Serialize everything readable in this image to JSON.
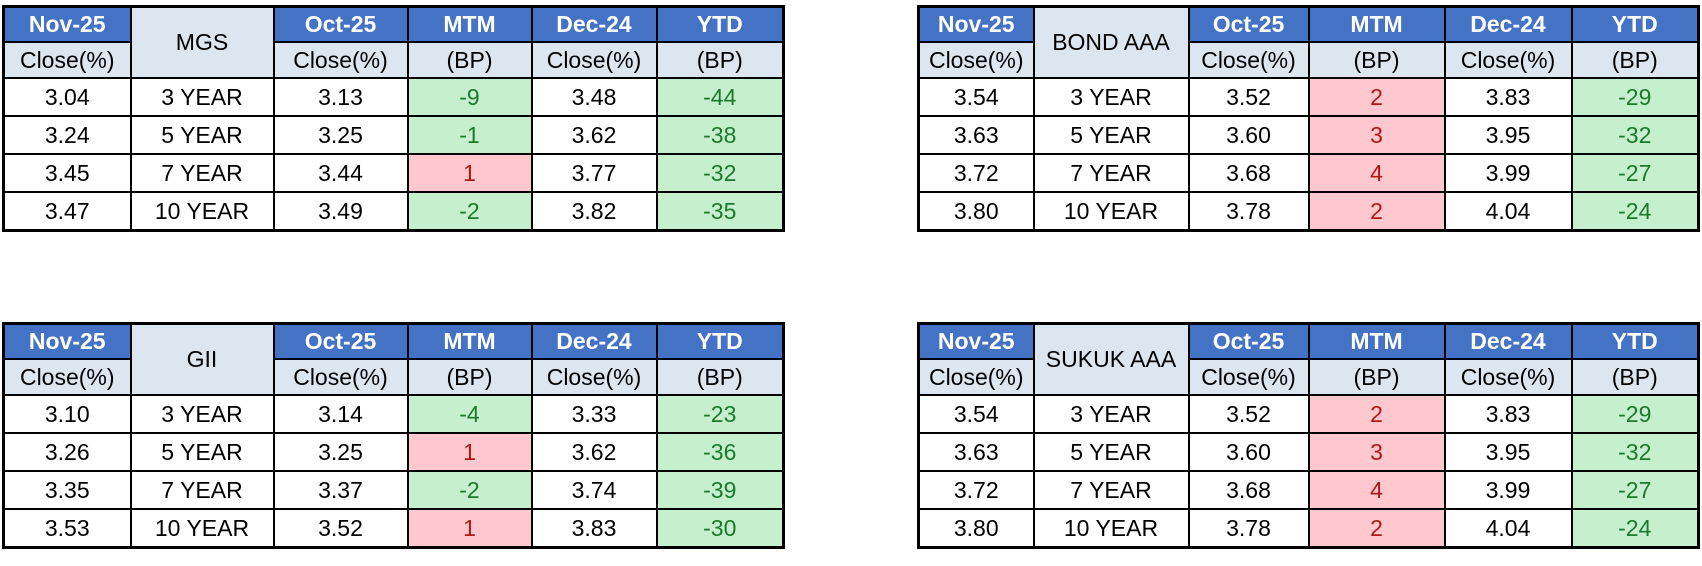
{
  "colors": {
    "header_blue": "#4472C4",
    "header_light_blue": "#DCE6F1",
    "up_bg": "#FFC7CE",
    "up_text": "#B01818",
    "down_bg": "#C6EFCE",
    "down_text": "#1B7A2B",
    "grid": "#000000",
    "page_bg": "#FFFFFF"
  },
  "tables": [
    {
      "name": "MGS",
      "position": "top-left",
      "headers": [
        {
          "label": "Nov-25",
          "sub": "Close(%)"
        },
        {
          "label": "Oct-25",
          "sub": "Close(%)"
        },
        {
          "label": "MTM",
          "sub": "(BP)"
        },
        {
          "label": "Dec-24",
          "sub": "Close(%)"
        },
        {
          "label": "YTD",
          "sub": "(BP)"
        }
      ],
      "rows": [
        {
          "nov_close": "3.04",
          "tenor": "3 YEAR",
          "oct_close": "3.13",
          "mtm": "-9",
          "dec_close": "3.48",
          "ytd": "-44"
        },
        {
          "nov_close": "3.24",
          "tenor": "5 YEAR",
          "oct_close": "3.25",
          "mtm": "-1",
          "dec_close": "3.62",
          "ytd": "-38"
        },
        {
          "nov_close": "3.45",
          "tenor": "7 YEAR",
          "oct_close": "3.44",
          "mtm": "1",
          "dec_close": "3.77",
          "ytd": "-32"
        },
        {
          "nov_close": "3.47",
          "tenor": "10 YEAR",
          "oct_close": "3.49",
          "mtm": "-2",
          "dec_close": "3.82",
          "ytd": "-35"
        }
      ]
    },
    {
      "name": "BOND AAA",
      "position": "top-right",
      "headers": [
        {
          "label": "Nov-25",
          "sub": "Close(%)"
        },
        {
          "label": "Oct-25",
          "sub": "Close(%)"
        },
        {
          "label": "MTM",
          "sub": "(BP)"
        },
        {
          "label": "Dec-24",
          "sub": "Close(%)"
        },
        {
          "label": "YTD",
          "sub": "(BP)"
        }
      ],
      "rows": [
        {
          "nov_close": "3.54",
          "tenor": "3 YEAR",
          "oct_close": "3.52",
          "mtm": "2",
          "dec_close": "3.83",
          "ytd": "-29"
        },
        {
          "nov_close": "3.63",
          "tenor": "5 YEAR",
          "oct_close": "3.60",
          "mtm": "3",
          "dec_close": "3.95",
          "ytd": "-32"
        },
        {
          "nov_close": "3.72",
          "tenor": "7 YEAR",
          "oct_close": "3.68",
          "mtm": "4",
          "dec_close": "3.99",
          "ytd": "-27"
        },
        {
          "nov_close": "3.80",
          "tenor": "10 YEAR",
          "oct_close": "3.78",
          "mtm": "2",
          "dec_close": "4.04",
          "ytd": "-24"
        }
      ]
    },
    {
      "name": "GII",
      "position": "bottom-left",
      "headers": [
        {
          "label": "Nov-25",
          "sub": "Close(%)"
        },
        {
          "label": "Oct-25",
          "sub": "Close(%)"
        },
        {
          "label": "MTM",
          "sub": "(BP)"
        },
        {
          "label": "Dec-24",
          "sub": "Close(%)"
        },
        {
          "label": "YTD",
          "sub": "(BP)"
        }
      ],
      "rows": [
        {
          "nov_close": "3.10",
          "tenor": "3 YEAR",
          "oct_close": "3.14",
          "mtm": "-4",
          "dec_close": "3.33",
          "ytd": "-23"
        },
        {
          "nov_close": "3.26",
          "tenor": "5 YEAR",
          "oct_close": "3.25",
          "mtm": "1",
          "dec_close": "3.62",
          "ytd": "-36"
        },
        {
          "nov_close": "3.35",
          "tenor": "7 YEAR",
          "oct_close": "3.37",
          "mtm": "-2",
          "dec_close": "3.74",
          "ytd": "-39"
        },
        {
          "nov_close": "3.53",
          "tenor": "10 YEAR",
          "oct_close": "3.52",
          "mtm": "1",
          "dec_close": "3.83",
          "ytd": "-30"
        }
      ]
    },
    {
      "name": "SUKUK AAA",
      "position": "bottom-right",
      "headers": [
        {
          "label": "Nov-25",
          "sub": "Close(%)"
        },
        {
          "label": "Oct-25",
          "sub": "Close(%)"
        },
        {
          "label": "MTM",
          "sub": "(BP)"
        },
        {
          "label": "Dec-24",
          "sub": "Close(%)"
        },
        {
          "label": "YTD",
          "sub": "(BP)"
        }
      ],
      "rows": [
        {
          "nov_close": "3.54",
          "tenor": "3 YEAR",
          "oct_close": "3.52",
          "mtm": "2",
          "dec_close": "3.83",
          "ytd": "-29"
        },
        {
          "nov_close": "3.63",
          "tenor": "5 YEAR",
          "oct_close": "3.60",
          "mtm": "3",
          "dec_close": "3.95",
          "ytd": "-32"
        },
        {
          "nov_close": "3.72",
          "tenor": "7 YEAR",
          "oct_close": "3.68",
          "mtm": "4",
          "dec_close": "3.99",
          "ytd": "-27"
        },
        {
          "nov_close": "3.80",
          "tenor": "10 YEAR",
          "oct_close": "3.78",
          "mtm": "2",
          "dec_close": "4.04",
          "ytd": "-24"
        }
      ]
    }
  ]
}
